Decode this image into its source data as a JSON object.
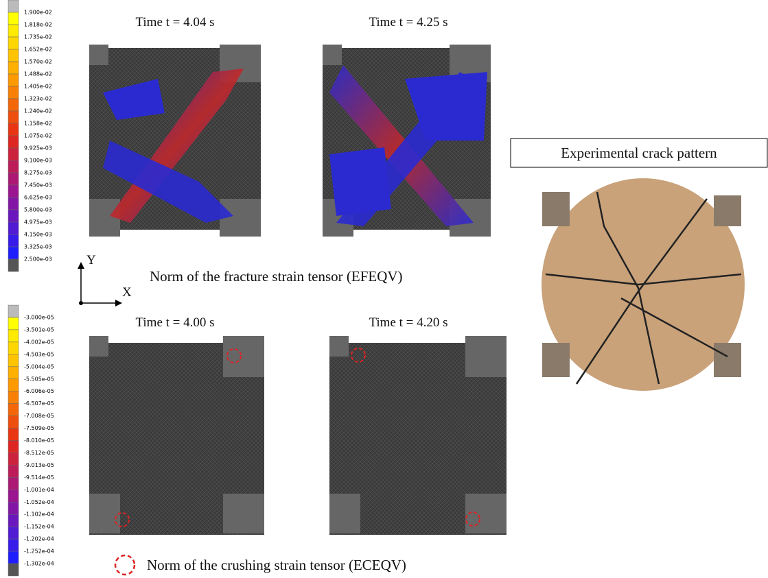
{
  "fracture_colorbar": {
    "labels": [
      "1.900e-02",
      "1.818e-02",
      "1.735e-02",
      "1.652e-02",
      "1.570e-02",
      "1.488e-02",
      "1.405e-02",
      "1.323e-02",
      "1.240e-02",
      "1.158e-02",
      "1.075e-02",
      "9.925e-03",
      "9.100e-03",
      "8.275e-03",
      "7.450e-03",
      "6.625e-03",
      "5.800e-03",
      "4.975e-03",
      "4.150e-03",
      "3.325e-03",
      "2.500e-03"
    ]
  },
  "crushing_colorbar": {
    "labels": [
      "-3.000e-05",
      "-3.501e-05",
      "-4.002e-05",
      "-4.503e-05",
      "-5.004e-05",
      "-5.505e-05",
      "-6.006e-05",
      "-6.507e-05",
      "-7.008e-05",
      "-7.509e-05",
      "-8.010e-05",
      "-8.512e-05",
      "-9.013e-05",
      "-9.514e-05",
      "-1.001e-04",
      "-1.052e-04",
      "-1.102e-04",
      "-1.152e-04",
      "-1.202e-04",
      "-1.252e-04",
      "-1.302e-04"
    ]
  },
  "axes": {
    "y": "Y",
    "x": "X"
  },
  "fracture_panels": [
    {
      "time": "Time t = 4.04 s"
    },
    {
      "time": "Time t = 4.25 s"
    }
  ],
  "fracture_caption": "Norm of the fracture strain tensor (EFEQV)",
  "crushing_panels": [
    {
      "time": "Time t = 4.00 s"
    },
    {
      "time": "Time t = 4.20 s"
    }
  ],
  "crushing_caption": "Norm of the crushing strain tensor (ECEQV)",
  "experiment": {
    "label": "Experimental crack pattern"
  }
}
